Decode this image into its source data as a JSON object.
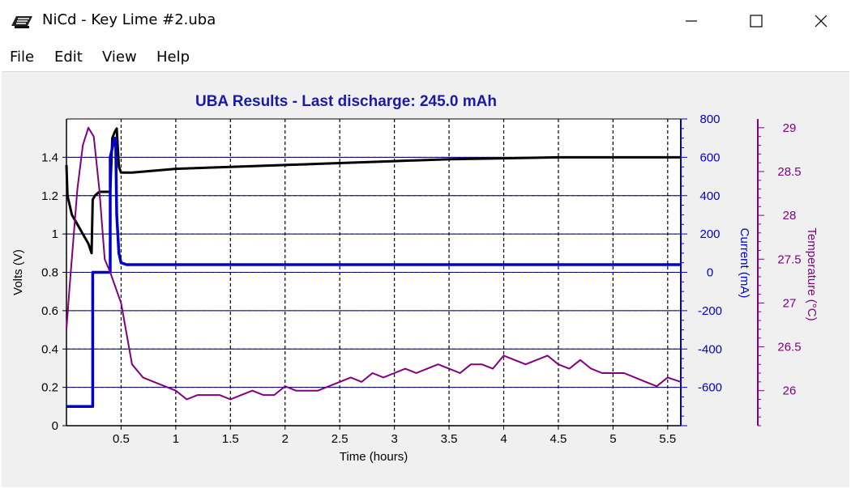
{
  "window": {
    "title": "NiCd - Key Lime #2.uba",
    "icon": "battery-analyzer-icon",
    "controls": {
      "minimize": "minimize-icon",
      "maximize": "maximize-icon",
      "close": "close-icon"
    }
  },
  "menu": {
    "items": [
      "File",
      "Edit",
      "View",
      "Help"
    ]
  },
  "chart_data": {
    "type": "line",
    "title": "UBA Results - Last discharge: 245.0 mAh",
    "xlabel": "Time (hours)",
    "xlim": [
      0,
      5.62
    ],
    "x_ticks": [
      "0.5",
      "1",
      "1.5",
      "2",
      "2.5",
      "3",
      "3.5",
      "4",
      "4.5",
      "5",
      "5.5"
    ],
    "y_axes": {
      "volts": {
        "label": "Volts (V)",
        "range": [
          0,
          1.6
        ],
        "ticks": [
          "0",
          "0.2",
          "0.4",
          "0.6",
          "0.8",
          "1",
          "1.2",
          "1.4"
        ],
        "color": "#000000"
      },
      "current": {
        "label": "Current (mA)",
        "range": [
          -800,
          800
        ],
        "ticks": [
          "800",
          "600",
          "400",
          "200",
          "0",
          "-200",
          "-400",
          "-600"
        ],
        "color": "#0000cc"
      },
      "temperature": {
        "label": "Temperature (°C)",
        "range": [
          25.6,
          29.1
        ],
        "ticks": [
          "29",
          "28.5",
          "28",
          "27.5",
          "27",
          "26.5",
          "26"
        ],
        "color": "#800080"
      }
    },
    "grid": true,
    "series": [
      {
        "axis": "volts",
        "color": "#000000",
        "x": [
          0,
          0.01,
          0.03,
          0.05,
          0.1,
          0.15,
          0.2,
          0.23,
          0.24,
          0.26,
          0.3,
          0.35,
          0.4,
          0.42,
          0.44,
          0.46,
          0.48,
          0.5,
          0.6,
          1.0,
          1.5,
          2.0,
          2.5,
          3.0,
          3.5,
          4.0,
          4.5,
          5.0,
          5.5,
          5.62
        ],
        "y": [
          1.36,
          1.2,
          1.15,
          1.1,
          1.05,
          1.0,
          0.95,
          0.9,
          1.18,
          1.2,
          1.22,
          1.22,
          1.22,
          1.5,
          1.53,
          1.55,
          1.35,
          1.32,
          1.32,
          1.34,
          1.35,
          1.36,
          1.37,
          1.38,
          1.39,
          1.395,
          1.4,
          1.4,
          1.4,
          1.4
        ]
      },
      {
        "axis": "current",
        "color": "#0000cc",
        "x": [
          0,
          0.24,
          0.24,
          0.4,
          0.4,
          0.44,
          0.45,
          0.46,
          0.48,
          0.5,
          0.55,
          1.0,
          2.0,
          3.0,
          4.0,
          5.0,
          5.62
        ],
        "y": [
          -700,
          -700,
          0,
          0,
          600,
          700,
          700,
          300,
          100,
          50,
          40,
          40,
          40,
          40,
          40,
          40,
          40
        ]
      },
      {
        "axis": "temperature",
        "color": "#800080",
        "x": [
          0,
          0.03,
          0.1,
          0.15,
          0.2,
          0.25,
          0.3,
          0.35,
          0.4,
          0.5,
          0.6,
          0.7,
          0.8,
          1.0,
          1.1,
          1.2,
          1.4,
          1.5,
          1.6,
          1.7,
          1.8,
          1.9,
          2.0,
          2.1,
          2.2,
          2.3,
          2.4,
          2.5,
          2.6,
          2.7,
          2.8,
          2.9,
          3.0,
          3.1,
          3.2,
          3.3,
          3.4,
          3.5,
          3.6,
          3.7,
          3.8,
          3.9,
          4.0,
          4.1,
          4.2,
          4.3,
          4.4,
          4.5,
          4.6,
          4.7,
          4.8,
          4.9,
          5.0,
          5.1,
          5.2,
          5.3,
          5.4,
          5.5,
          5.62
        ],
        "y": [
          26.7,
          27.2,
          28.3,
          28.8,
          29.0,
          28.9,
          28.3,
          27.5,
          27.35,
          27.0,
          26.3,
          26.15,
          26.1,
          26.0,
          25.9,
          25.95,
          25.95,
          25.9,
          25.95,
          26.0,
          25.95,
          25.95,
          26.05,
          26.0,
          26.0,
          26.0,
          26.05,
          26.1,
          26.15,
          26.1,
          26.2,
          26.15,
          26.2,
          26.25,
          26.2,
          26.25,
          26.3,
          26.25,
          26.2,
          26.3,
          26.3,
          26.25,
          26.4,
          26.35,
          26.3,
          26.35,
          26.4,
          26.3,
          26.25,
          26.35,
          26.25,
          26.2,
          26.2,
          26.2,
          26.15,
          26.1,
          26.05,
          26.15,
          26.1
        ]
      }
    ]
  }
}
